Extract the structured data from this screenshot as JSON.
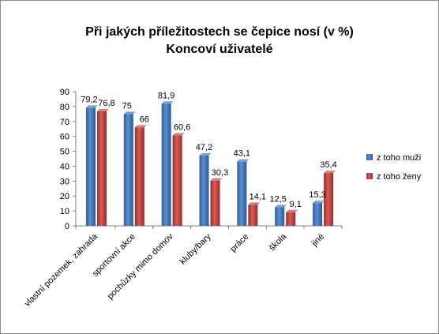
{
  "chart_data": {
    "type": "bar",
    "title": "Při jakých příležitostech se čepice nosí (v %)",
    "subtitle": "Konco­ví uživatelé",
    "categories": [
      "vlastní pozemek, zahrada",
      "sportovní akce",
      "pochůzky mimo domov",
      "kluby/bary",
      "práce",
      "škola",
      "jiné"
    ],
    "series": [
      {
        "name": "z toho muži",
        "values": [
          79.2,
          75,
          81.9,
          47.2,
          43.1,
          12.5,
          15.3
        ],
        "labels": [
          "79,2",
          "75",
          "81,9",
          "47,2",
          "43,1",
          "12,5",
          "15,3"
        ],
        "color": "#4f81bd"
      },
      {
        "name": "z toho ženy",
        "values": [
          76.8,
          66,
          60.6,
          30.3,
          14.1,
          9.1,
          35.4
        ],
        "labels": [
          "76,8",
          "66",
          "60,6",
          "30,3",
          "14,1",
          "9,1",
          "35,4"
        ],
        "color": "#c0504d"
      }
    ],
    "ylim": [
      0,
      90
    ],
    "yticks": [
      "0",
      "10",
      "20",
      "30",
      "40",
      "50",
      "60",
      "70",
      "80",
      "90"
    ],
    "grid": false,
    "legend": "right"
  }
}
